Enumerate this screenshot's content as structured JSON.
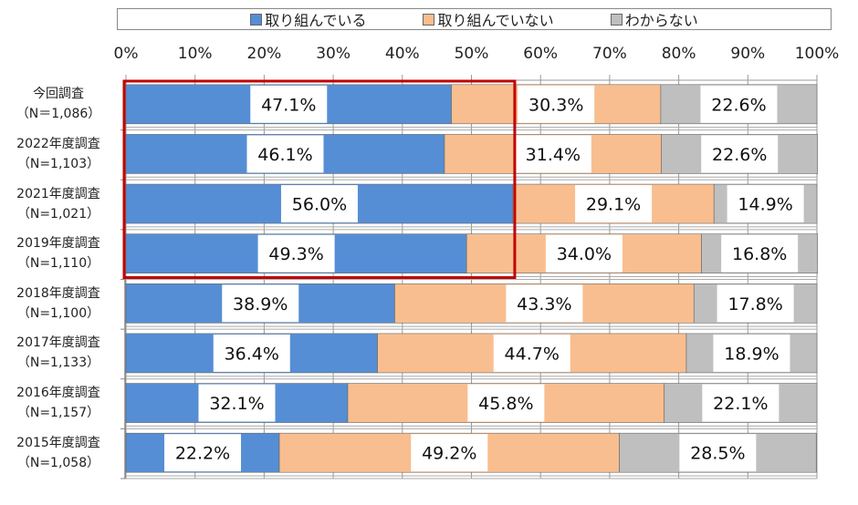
{
  "chart_data": {
    "type": "bar",
    "orientation": "horizontal",
    "stacked": "percent",
    "categories": [
      {
        "name": "今回調査",
        "n": "（N＝1,086）"
      },
      {
        "name": "2022年度調査",
        "n": "（N=1,103）"
      },
      {
        "name": "2021年度調査",
        "n": "（N=1,021）"
      },
      {
        "name": "2019年度調査",
        "n": "（N=1,110）"
      },
      {
        "name": "2018年度調査",
        "n": "（N=1,100）"
      },
      {
        "name": "2017年度調査",
        "n": "（N=1,133）"
      },
      {
        "name": "2016年度調査",
        "n": "（N=1,157）"
      },
      {
        "name": "2015年度調査",
        "n": "（N=1,058）"
      }
    ],
    "series": [
      {
        "name": "取り組んでいる",
        "color": "#558ed5",
        "values": [
          47.1,
          46.1,
          56.0,
          49.3,
          38.9,
          36.4,
          32.1,
          22.2
        ]
      },
      {
        "name": "取り組んでいない",
        "color": "#f9be8f",
        "values": [
          30.3,
          31.4,
          29.1,
          34.0,
          43.3,
          44.7,
          45.8,
          49.2
        ]
      },
      {
        "name": "わからない",
        "color": "#bfbfbf",
        "values": [
          22.6,
          22.6,
          14.9,
          16.8,
          17.8,
          18.9,
          22.1,
          28.5
        ]
      }
    ],
    "xticks": [
      "0%",
      "10%",
      "20%",
      "30%",
      "40%",
      "50%",
      "60%",
      "70%",
      "80%",
      "90%",
      "100%"
    ],
    "xlim": [
      0,
      100
    ],
    "legend_position": "top",
    "grid": true,
    "highlight": {
      "color": "#c00000",
      "categories": [
        "今回調査",
        "2022年度調査",
        "2021年度調査",
        "2019年度調査"
      ],
      "series": "取り組んでいる"
    }
  }
}
